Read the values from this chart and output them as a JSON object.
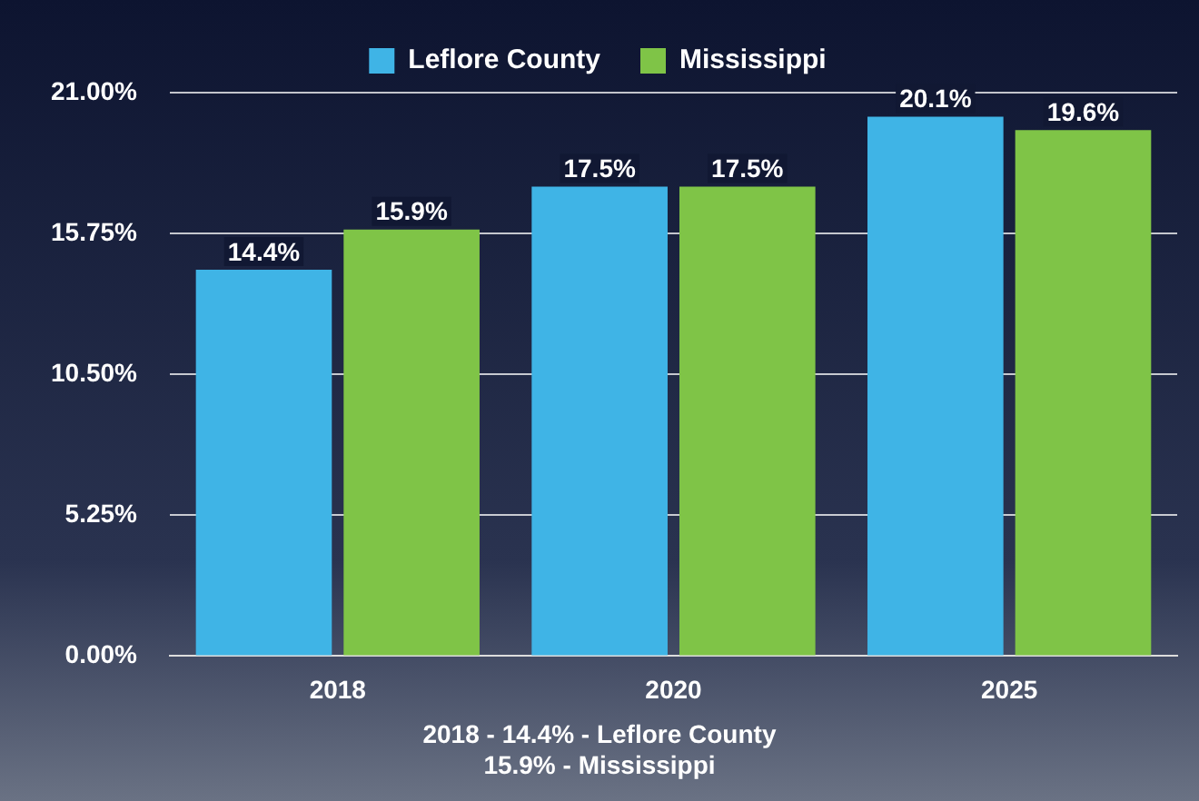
{
  "chart_data": {
    "type": "bar",
    "categories": [
      "2018",
      "2020",
      "2025"
    ],
    "series": [
      {
        "name": "Leflore County",
        "color": "#3fb4e6",
        "values": [
          14.4,
          17.5,
          20.1
        ],
        "value_labels": [
          "14.4%",
          "17.5%",
          "20.1%"
        ]
      },
      {
        "name": "Mississippi",
        "color": "#7fc447",
        "values": [
          15.9,
          17.5,
          19.6
        ],
        "value_labels": [
          "15.9%",
          "17.5%",
          "19.6%"
        ]
      }
    ],
    "ylim": [
      0,
      21
    ],
    "yticks": [
      {
        "value": 0,
        "label": "0.00%"
      },
      {
        "value": 5.25,
        "label": "5.25%"
      },
      {
        "value": 10.5,
        "label": "10.50%"
      },
      {
        "value": 15.75,
        "label": "15.75%"
      },
      {
        "value": 21,
        "label": "21.00%"
      }
    ],
    "grid": "y",
    "legend": "top",
    "annotations": [
      "2018 - 14.4% - Leflore County",
      "15.9% - Mississippi"
    ]
  }
}
